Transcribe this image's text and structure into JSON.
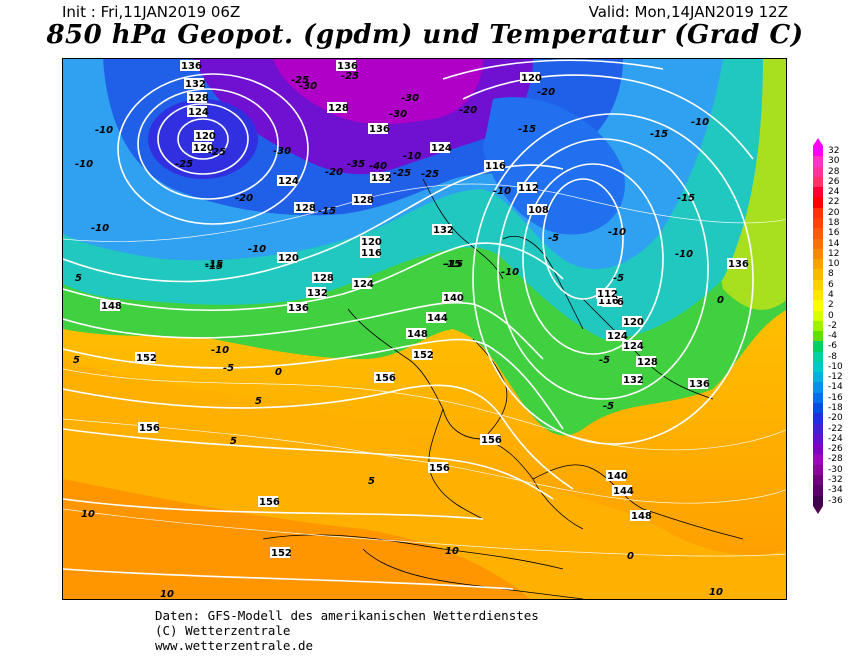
{
  "header": {
    "init": "Init : Fri,11JAN2019 06Z",
    "valid": "Valid: Mon,14JAN2019 12Z",
    "title": "850 hPa Geopot. (gpdm) und Temperatur (Grad C)"
  },
  "legend": {
    "labels": [
      "32",
      "30",
      "28",
      "26",
      "24",
      "22",
      "20",
      "18",
      "16",
      "14",
      "12",
      "10",
      "8",
      "6",
      "4",
      "2",
      "0",
      "-2",
      "-4",
      "-6",
      "-8",
      "-10",
      "-12",
      "-14",
      "-16",
      "-18",
      "-20",
      "-22",
      "-24",
      "-26",
      "-28",
      "-30",
      "-32",
      "-34",
      "-36"
    ],
    "colors": [
      "#ff00ff",
      "#ff33cc",
      "#ff3399",
      "#ff3366",
      "#ff0033",
      "#ff0000",
      "#ff3300",
      "#ff4400",
      "#ff5a00",
      "#ff7000",
      "#ff8800",
      "#ffa000",
      "#ffb800",
      "#ffd000",
      "#ffe600",
      "#ffff00",
      "#d8ff00",
      "#a0f000",
      "#60e000",
      "#00d060",
      "#00d0a0",
      "#00c8c8",
      "#00b0e0",
      "#0090f0",
      "#0070f0",
      "#0050e8",
      "#2030e0",
      "#4020d8",
      "#6010d0",
      "#8000c8",
      "#a000c0",
      "#9000a0",
      "#700080",
      "#580068",
      "#400050"
    ]
  },
  "map": {
    "geopotential_labels": [
      "136",
      "132",
      "128",
      "124",
      "120",
      "120",
      "128",
      "124",
      "128",
      "116",
      "120",
      "124",
      "136",
      "132",
      "128",
      "124",
      "120",
      "116",
      "112",
      "108",
      "116",
      "120",
      "124",
      "128",
      "132",
      "136",
      "140",
      "144",
      "148",
      "152",
      "156",
      "156",
      "156",
      "156",
      "152",
      "148",
      "144",
      "140",
      "136",
      "132",
      "128",
      "136",
      "148",
      "152",
      "156",
      "124",
      "120",
      "116",
      "112",
      "136",
      "132"
    ],
    "temperature_labels": [
      "-25",
      "-30",
      "-25",
      "-30",
      "-25",
      "-20",
      "-10",
      "-10",
      "-25",
      "-30",
      "-20",
      "-25",
      "-15",
      "-10",
      "-15",
      "-20",
      "-10",
      "-15",
      "-15",
      "-10",
      "-10",
      "-5",
      "-10",
      "-5",
      "-10",
      "-15",
      "-10",
      "-10",
      "-5",
      "-5",
      "0",
      "0",
      "5",
      "5",
      "5",
      "5",
      "5",
      "10",
      "10",
      "10",
      "10",
      "0",
      "-5",
      "-10",
      "-15",
      "-15",
      "-15",
      "-20",
      "-35",
      "-30",
      "-40",
      "-25"
    ]
  },
  "footer": {
    "line1": "Daten: GFS-Modell des amerikanischen Wetterdienstes",
    "line2": "(C) Wetterzentrale",
    "line3": "www.wetterzentrale.de"
  }
}
